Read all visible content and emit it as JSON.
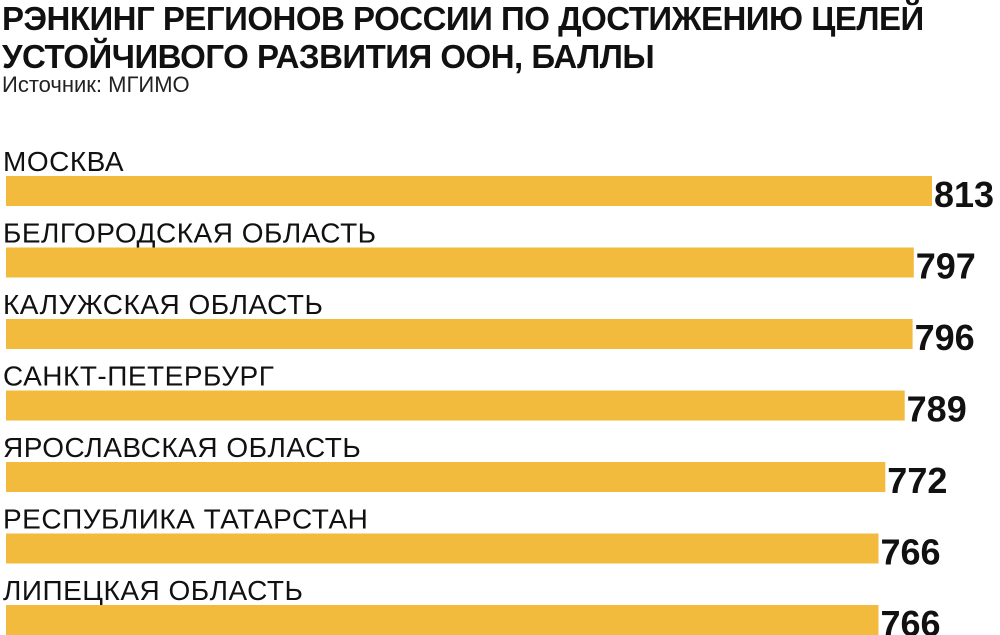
{
  "title_line1": "РЭНКИНГ РЕГИОНОВ РОССИИ ПО ДОСТИЖЕНИЮ ЦЕЛЕЙ",
  "title_line2": "УСТОЙЧИВОГО РАЗВИТИЯ ООН, БАЛЛЫ",
  "source": "Источник: МГИМО",
  "colors": {
    "bar": "#F2BB3E",
    "text": "#111111"
  },
  "chart_data": {
    "type": "bar",
    "orientation": "horizontal",
    "title": "РЭНКИНГ РЕГИОНОВ РОССИИ ПО ДОСТИЖЕНИЮ ЦЕЛЕЙ УСТОЙЧИВОГО РАЗВИТИЯ ООН, БАЛЛЫ",
    "subtitle": "Источник: МГИМО",
    "categories": [
      "МОСКВА",
      "БЕЛГОРОДСКАЯ ОБЛАСТЬ",
      "КАЛУЖСКАЯ ОБЛАСТЬ",
      "САНКТ-ПЕТЕРБУРГ",
      "ЯРОСЛАВСКАЯ ОБЛАСТЬ",
      "РЕСПУБЛИКА ТАТАРСТАН",
      "ЛИПЕЦКАЯ ОБЛАСТЬ"
    ],
    "values": [
      813,
      797,
      796,
      789,
      772,
      766,
      766
    ],
    "xlabel": "",
    "ylabel": "",
    "grid": false,
    "legend": "none"
  }
}
